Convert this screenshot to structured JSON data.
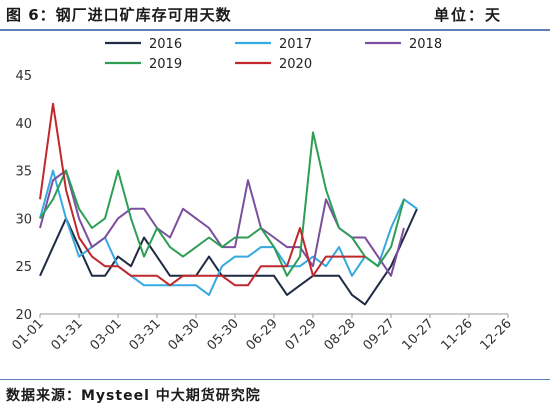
{
  "header": {
    "title": "图 6：钢厂进口矿库存可用天数",
    "unit": "单位：天"
  },
  "footer": {
    "source": "数据来源：Mysteel 中大期货研究院"
  },
  "chart_data": {
    "type": "line",
    "x_ticks": [
      "01-01",
      "01-31",
      "03-01",
      "03-31",
      "04-30",
      "05-30",
      "06-29",
      "07-29",
      "08-28",
      "09-27",
      "10-27",
      "11-26",
      "12-26"
    ],
    "x_range": [
      0,
      360
    ],
    "ylim": [
      20,
      45
    ],
    "y_ticks": [
      20,
      25,
      30,
      35,
      40,
      45
    ],
    "grid": false,
    "legend_position": "top",
    "x": [
      0,
      10,
      20,
      30,
      40,
      50,
      60,
      70,
      80,
      90,
      100,
      110,
      120,
      130,
      140,
      150,
      160,
      170,
      180,
      190,
      200,
      210,
      220,
      230,
      240,
      250,
      260,
      270,
      280,
      290,
      300,
      310,
      320,
      330,
      340,
      350,
      360
    ],
    "series": [
      {
        "name": "2016",
        "color": "#1f2a44",
        "values": [
          24,
          27,
          30,
          27,
          24,
          24,
          26,
          25,
          28,
          26,
          24,
          24,
          24,
          26,
          24,
          24,
          24,
          24,
          24,
          22,
          23,
          24,
          24,
          24,
          22,
          21,
          23,
          25,
          28,
          31,
          null,
          null,
          null,
          null,
          null,
          null,
          null
        ]
      },
      {
        "name": "2017",
        "color": "#35a9e0",
        "values": [
          30,
          35,
          30,
          26,
          27,
          28,
          25,
          24,
          23,
          23,
          23,
          23,
          23,
          22,
          25,
          26,
          26,
          27,
          27,
          25,
          25,
          26,
          25,
          27,
          24,
          26,
          25,
          29,
          32,
          31,
          null,
          null,
          null,
          null,
          null,
          null,
          null
        ]
      },
      {
        "name": "2018",
        "color": "#7b4fa0",
        "values": [
          29,
          34,
          35,
          30,
          27,
          28,
          30,
          31,
          31,
          29,
          28,
          31,
          30,
          29,
          27,
          27,
          34,
          29,
          28,
          27,
          27,
          25,
          32,
          29,
          28,
          28,
          26,
          24,
          29,
          null,
          null,
          null,
          null,
          null,
          null,
          null,
          null
        ]
      },
      {
        "name": "2019",
        "color": "#2e9e55",
        "values": [
          30,
          32,
          35,
          31,
          29,
          30,
          35,
          30,
          26,
          29,
          27,
          26,
          27,
          28,
          27,
          28,
          28,
          29,
          27,
          24,
          26,
          39,
          33,
          29,
          28,
          26,
          25,
          27,
          32,
          null,
          null,
          null,
          null,
          null,
          null,
          null,
          null
        ]
      },
      {
        "name": "2020",
        "color": "#c0282d",
        "values": [
          32,
          42,
          33,
          28,
          26,
          25,
          25,
          24,
          24,
          24,
          23,
          24,
          24,
          24,
          24,
          23,
          23,
          25,
          25,
          25,
          29,
          24,
          26,
          26,
          26,
          26,
          null,
          null,
          null,
          null,
          null,
          null,
          null,
          null,
          null,
          null,
          null
        ]
      }
    ]
  }
}
